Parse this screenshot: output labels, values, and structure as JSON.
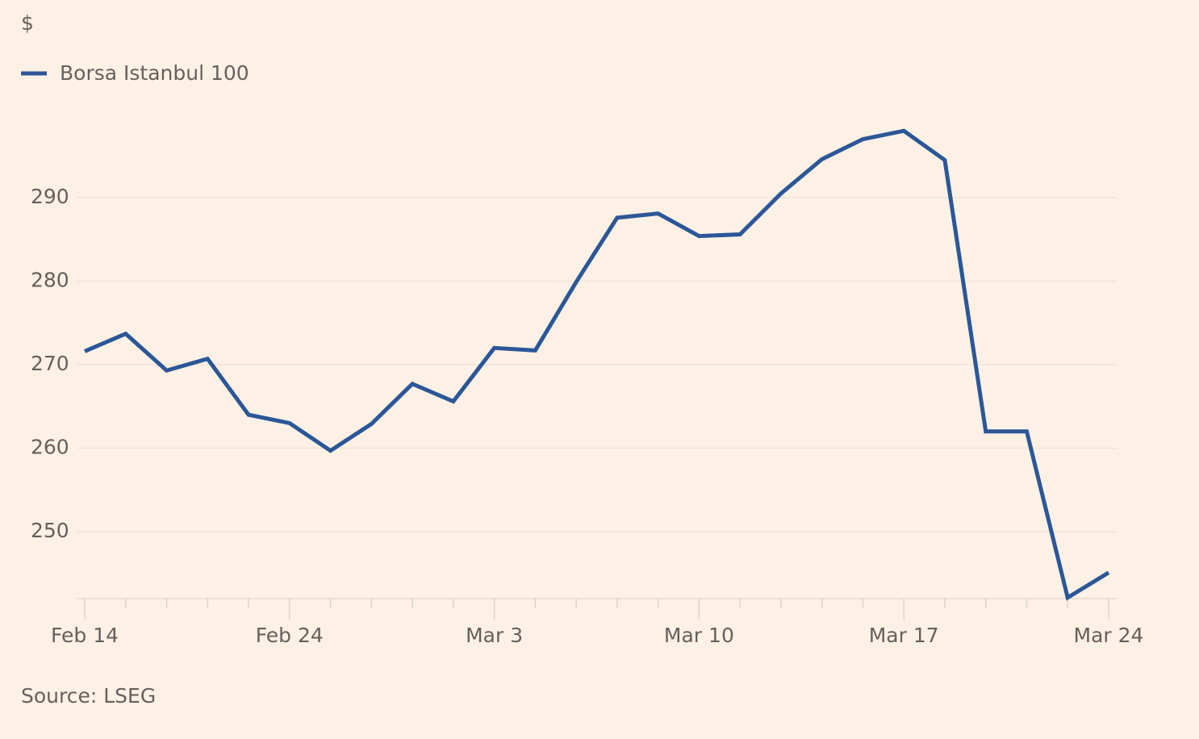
{
  "chart_data": {
    "type": "line",
    "y_unit": "$",
    "source": "Source: LSEG",
    "categories": [
      "Feb 14",
      null,
      null,
      null,
      null,
      "Feb 24",
      null,
      null,
      null,
      null,
      "Mar 3",
      null,
      null,
      null,
      null,
      "Mar 10",
      null,
      null,
      null,
      null,
      "Mar 17",
      null,
      null,
      null,
      null,
      "Mar 24"
    ],
    "series": [
      {
        "name": "Borsa Istanbul 100",
        "color": "#2b5797",
        "values": [
          271.6,
          273.7,
          269.3,
          270.7,
          264.0,
          263.0,
          259.7,
          262.9,
          267.7,
          265.6,
          272.0,
          271.7,
          279.9,
          287.6,
          288.1,
          285.4,
          285.6,
          290.5,
          294.6,
          297.0,
          298.0,
          294.5,
          262.0,
          262.0,
          242.1,
          245.1
        ]
      }
    ],
    "ylim": [
      242,
      300
    ],
    "yticks": [
      250,
      260,
      270,
      280,
      290
    ],
    "grid": true
  }
}
